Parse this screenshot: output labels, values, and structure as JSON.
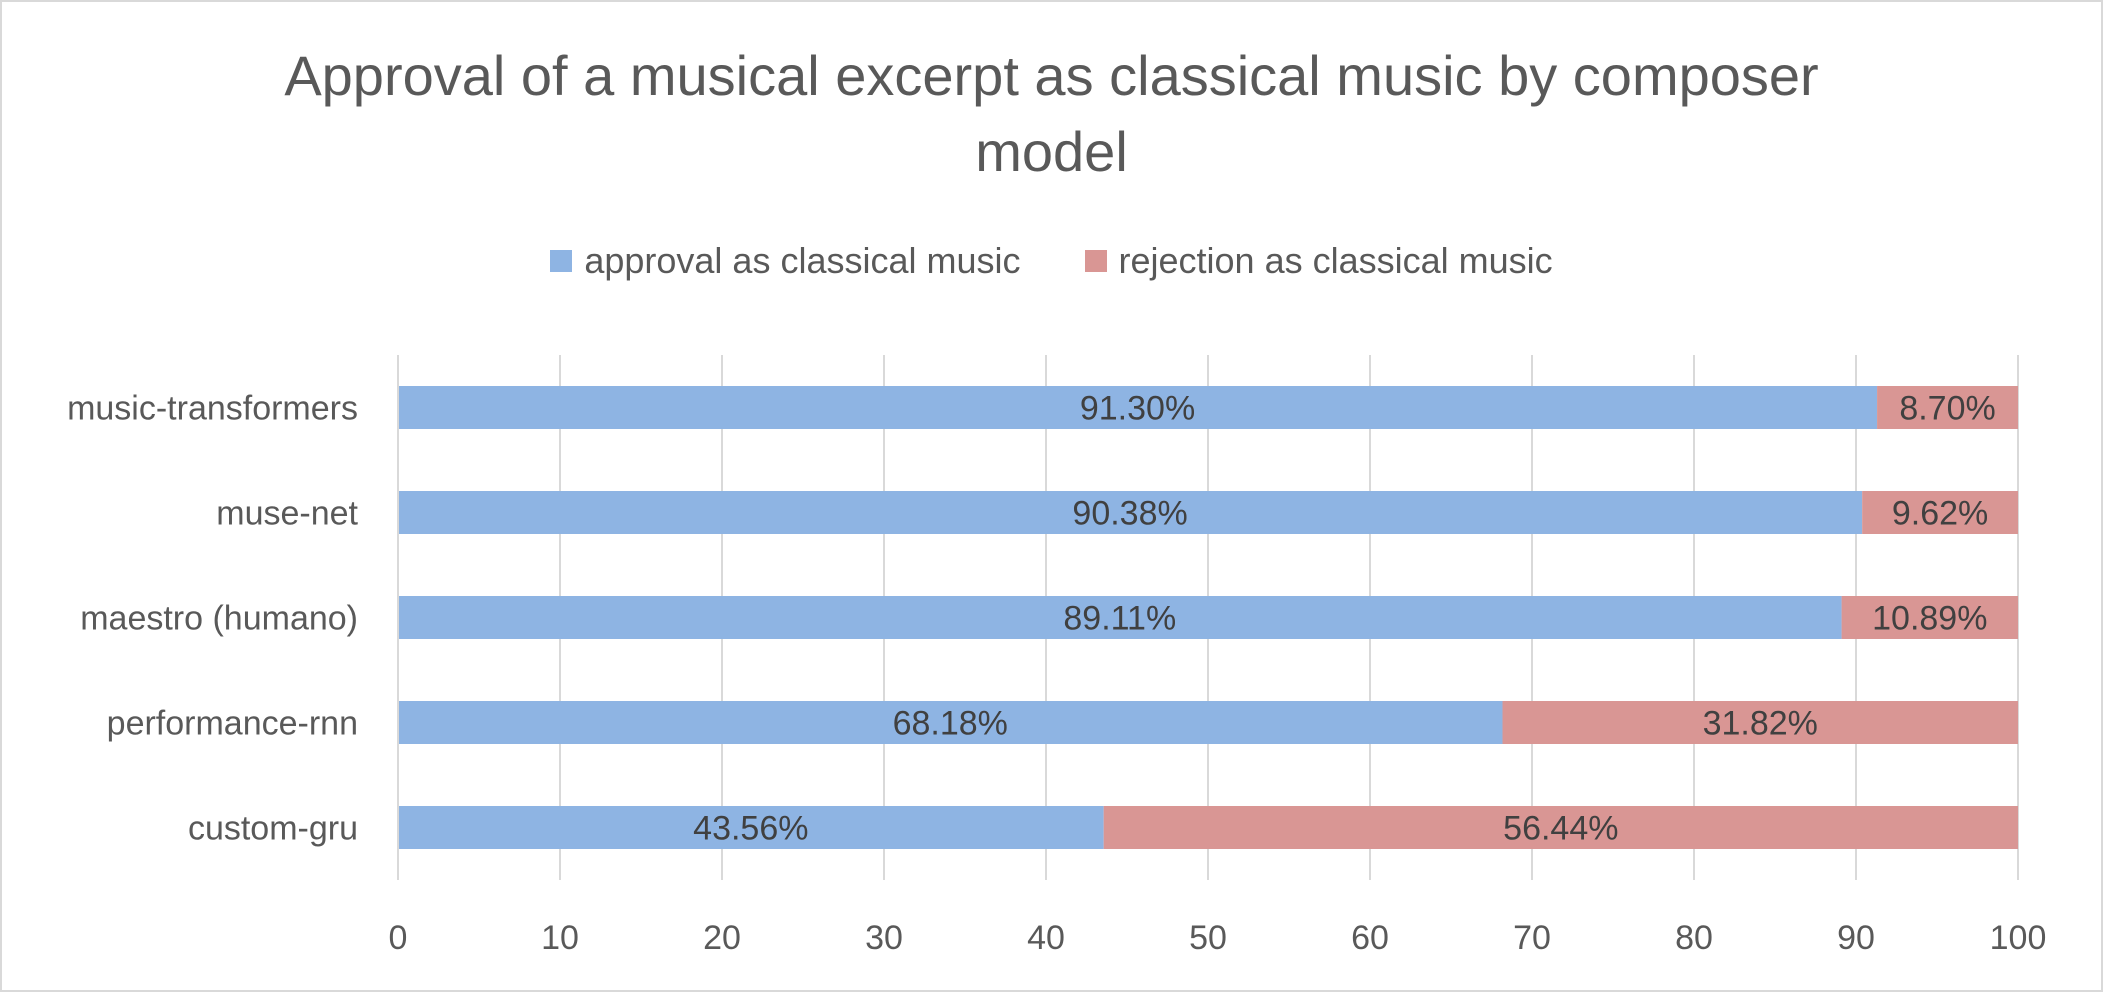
{
  "chart_data": {
    "type": "bar",
    "orientation": "horizontal",
    "stacked": true,
    "title_lines": [
      "Approval of a musical excerpt as classical music by composer",
      "model"
    ],
    "categories": [
      "music-transformers",
      "muse-net",
      "maestro (humano)",
      "performance-rnn",
      "custom-gru"
    ],
    "series": [
      {
        "name": "approval as classical music",
        "color": "#8eb4e3",
        "values": [
          91.3,
          90.38,
          89.11,
          68.18,
          43.56
        ],
        "labels": [
          "91.30%",
          "90.38%",
          "89.11%",
          "68.18%",
          "43.56%"
        ]
      },
      {
        "name": "rejection as  classical music",
        "color": "#d99694",
        "values": [
          8.7,
          9.62,
          10.89,
          31.82,
          56.44
        ],
        "labels": [
          "8.70%",
          "9.62%",
          "10.89%",
          "31.82%",
          "56.44%"
        ]
      }
    ],
    "xlim": [
      0,
      100
    ],
    "xticks": [
      0,
      10,
      20,
      30,
      40,
      50,
      60,
      70,
      80,
      90,
      100
    ],
    "grid": true,
    "legend_position": "top"
  }
}
